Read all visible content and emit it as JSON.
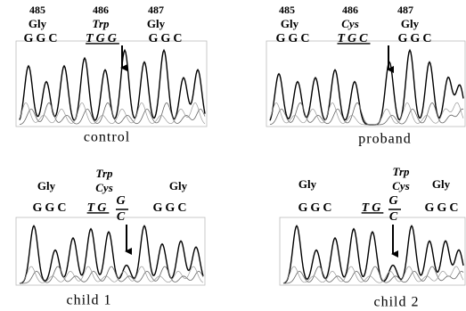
{
  "panels": [
    {
      "positions": [
        "485",
        "486",
        "487"
      ],
      "amino_acids": [
        "Gly",
        "Trp",
        "Gly"
      ],
      "codons": [
        "GGC",
        "TGG",
        "GGC"
      ],
      "caption": "control"
    },
    {
      "positions": [
        "485",
        "486",
        "487"
      ],
      "amino_acids": [
        "Gly",
        "Cys",
        "Gly"
      ],
      "codons": [
        "GGC",
        "TGC",
        "GGC"
      ],
      "caption": "proband"
    },
    {
      "amino_acids": [
        "Gly",
        "Trp",
        "Cys",
        "Gly"
      ],
      "codons": [
        "GGC",
        "TG",
        "G",
        "C",
        "GGC"
      ],
      "caption": "child 1"
    },
    {
      "amino_acids": [
        "Gly",
        "Trp",
        "Cys",
        "Gly"
      ],
      "codons": [
        "GGC",
        "TG",
        "G",
        "C",
        "GGC"
      ],
      "caption": "child 2"
    }
  ]
}
